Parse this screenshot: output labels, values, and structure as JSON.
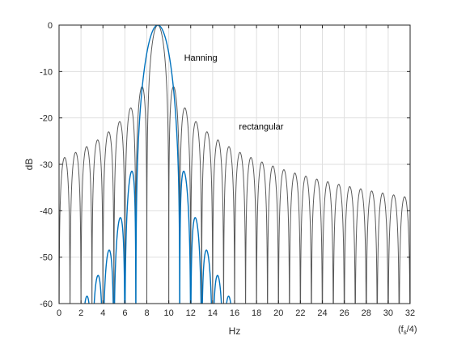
{
  "chart_data": {
    "type": "line",
    "title": "",
    "xlabel": "Hz",
    "ylabel": "dB",
    "xlim": [
      0,
      32
    ],
    "ylim": [
      -60,
      0
    ],
    "xticks": [
      0,
      2,
      4,
      6,
      8,
      10,
      12,
      14,
      16,
      18,
      20,
      22,
      24,
      26,
      28,
      30,
      32
    ],
    "yticks": [
      0,
      -10,
      -20,
      -30,
      -40,
      -50,
      -60
    ],
    "grid": true,
    "x_corner_note": "(f",
    "x_corner_sub": "s",
    "x_corner_tail": "/4)",
    "series": [
      {
        "name": "rectangular",
        "color": "#5a5a5a",
        "window": "rectangular",
        "center": 9,
        "bin_width": 1,
        "x": [
          0,
          32
        ],
        "peak_db": 0
      },
      {
        "name": "Hanning",
        "color": "#0072bd",
        "window": "hanning",
        "center": 9,
        "bin_width": 1,
        "x": [
          0,
          32
        ],
        "peak_db": 0
      }
    ],
    "annotations": [
      {
        "text": "Hanning",
        "series": "Hanning",
        "at_x": 11.4,
        "at_y": -7.7
      },
      {
        "text": "rectangular",
        "series": "rectangular",
        "at_x": 16.4,
        "at_y": -22.5
      }
    ]
  }
}
